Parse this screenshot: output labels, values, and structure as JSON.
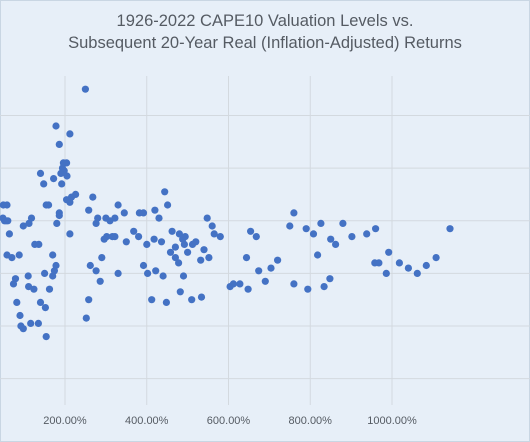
{
  "chart_data": {
    "type": "scatter",
    "title": [
      "1926-2022 CAPE10 Valuation Levels vs.",
      "Subsequent 20-Year Real (Inflation-Adjusted) Returns"
    ],
    "xlabel": "",
    "ylabel": "",
    "xlim": [
      15,
      1170
    ],
    "ylim": [
      -1,
      11.5
    ],
    "x_ticks": [
      200,
      400,
      600,
      800,
      1000
    ],
    "x_tick_labels": [
      "200.00%",
      "400.00%",
      "600.00%",
      "800.00%",
      "1000.00%"
    ],
    "y_grid": [
      0,
      2,
      4,
      6,
      8,
      10
    ],
    "grid": true,
    "legend": "none",
    "marker_color": "#4472c4",
    "x": [
      15,
      20,
      25,
      30,
      35,
      40,
      40,
      45,
      50,
      55,
      60,
      65,
      65,
      70,
      75,
      80,
      80,
      85,
      90,
      90,
      100,
      110,
      115,
      125,
      140,
      160,
      165,
      170,
      175,
      180,
      180,
      185,
      190,
      195,
      205,
      210,
      220,
      230,
      250,
      255,
      275,
      280,
      290,
      300,
      320,
      330,
      340,
      365,
      375,
      380,
      385,
      415,
      420,
      425,
      430,
      445,
      450,
      460,
      470,
      475,
      480,
      485,
      490,
      495,
      500,
      505,
      510,
      525,
      540,
      565,
      590,
      600,
      640,
      665,
      690,
      750,
      780,
      800,
      810,
      820,
      830,
      850,
      890,
      955,
      975,
      980,
      1045,
      1100
    ],
    "y": [
      3.0,
      2.0,
      6.5,
      5.0,
      3.0,
      1.7,
      8.5,
      8.9,
      3.9,
      6.1,
      8.4,
      6.3,
      6.8,
      6.6,
      5.5,
      8.6,
      5.2,
      8.6,
      6.8,
      6.5,
      8.7,
      4.8,
      5.6,
      8.8,
      3.0,
      1.3,
      3.4,
      7.4,
      9.2,
      7.4,
      6.8,
      8.1,
      3.5,
      9.3,
      8.6,
      7.4,
      9.7,
      9.2,
      4.0,
      6.7,
      6.4,
      6.5,
      3.3,
      7.6,
      5.6,
      5.2,
      8.4,
      3.7,
      2.5,
      4.2,
      5.4,
      4.0,
      1.3,
      3.7,
      5.8,
      7.0,
      5.2,
      6.3,
      7.5,
      6.5,
      5.6,
      5.5,
      6.2,
      4.6,
      4.0,
      5.3,
      5.6,
      6.3,
      6.5,
      3.8,
      4.5,
      4.6,
      6.1,
      6.5,
      7.0,
      5.1,
      6.1,
      5.5,
      4.5,
      5.4,
      4.9,
      4.6,
      5.4,
      5.6,
      4.9,
      5.3,
      4.6,
      5.6
    ],
    "points": [
      [
        5,
        5.0
      ],
      [
        5,
        3.4
      ],
      [
        12,
        3.0
      ],
      [
        12,
        2.0
      ],
      [
        12,
        6.4
      ],
      [
        18,
        6.4
      ],
      [
        28,
        6.4
      ],
      [
        34,
        6.0
      ],
      [
        36,
        6.1
      ],
      [
        44,
        6.6
      ],
      [
        49,
        6.6
      ],
      [
        60,
        6.0
      ],
      [
        88,
        4.7
      ],
      [
        110,
        3.9
      ],
      [
        111,
        3.5
      ],
      [
        135,
        2.1
      ],
      [
        150,
        4.0
      ],
      [
        160,
        6.6
      ],
      [
        170,
        4.7
      ],
      [
        180,
        5.9
      ],
      [
        186,
        6.3
      ],
      [
        192,
        7.4
      ],
      [
        198,
        7.9
      ],
      [
        204,
        8.2
      ],
      [
        212,
        6.7
      ],
      [
        216,
        6.9
      ],
      [
        258,
        6.4
      ],
      [
        276,
        5.9
      ],
      [
        290,
        4.6
      ],
      [
        302,
        5.4
      ],
      [
        316,
        5.4
      ],
      [
        330,
        4.0
      ],
      [
        345,
        6.3
      ],
      [
        368,
        5.6
      ],
      [
        382,
        6.3
      ],
      [
        392,
        6.3
      ],
      [
        420,
        6.4
      ],
      [
        430,
        6.1
      ],
      [
        444,
        7.1
      ],
      [
        451,
        6.6
      ],
      [
        462,
        5.6
      ],
      [
        470,
        5.0
      ],
      [
        492,
        5.1
      ],
      [
        500,
        4.8
      ],
      [
        512,
        5.1
      ],
      [
        532,
        4.5
      ],
      [
        548,
        6.1
      ],
      [
        560,
        5.8
      ],
      [
        580,
        5.4
      ],
      [
        604,
        3.5
      ],
      [
        628,
        3.6
      ],
      [
        644,
        4.6
      ],
      [
        668,
        5.4
      ],
      [
        690,
        3.7
      ],
      [
        720,
        4.5
      ],
      [
        760,
        6.3
      ],
      [
        790,
        5.7
      ],
      [
        818,
        4.7
      ],
      [
        826,
        5.9
      ],
      [
        850,
        5.3
      ],
      [
        862,
        5.1
      ],
      [
        880,
        5.9
      ],
      [
        902,
        5.4
      ],
      [
        938,
        5.5
      ],
      [
        968,
        4.4
      ],
      [
        992,
        4.8
      ],
      [
        1018,
        4.4
      ],
      [
        1040,
        4.2
      ],
      [
        1062,
        4.0
      ],
      [
        1084,
        4.3
      ],
      [
        1108,
        4.6
      ],
      [
        1142,
        5.7
      ]
    ],
    "series": [
      {
        "values": [
          [
            12,
            4.2
          ],
          [
            12,
            5.4
          ],
          [
            15,
            2.4
          ],
          [
            24,
            2.9
          ],
          [
            30,
            4.0
          ],
          [
            34,
            5.5
          ],
          [
            38,
            5.8
          ],
          [
            40,
            6.2
          ],
          [
            44,
            6.3
          ],
          [
            45,
            5.6
          ],
          [
            56,
            6.0
          ],
          [
            58,
            4.7
          ],
          [
            64,
            5.5
          ],
          [
            74,
            3.6
          ],
          [
            92,
            2.0
          ],
          [
            98,
            1.9
          ],
          [
            112,
            5.9
          ],
          [
            118,
            6.1
          ],
          [
            124,
            3.4
          ],
          [
            140,
            2.9
          ],
          [
            152,
            2.7
          ],
          [
            154,
            1.6
          ],
          [
            162,
            3.4
          ],
          [
            170,
            3.9
          ],
          [
            174,
            4.1
          ],
          [
            178,
            4.3
          ],
          [
            186,
            6.2
          ],
          [
            190,
            7.8
          ],
          [
            196,
            8.2
          ],
          [
            204,
            6.8
          ],
          [
            212,
            9.3
          ],
          [
            252,
            2.3
          ],
          [
            258,
            3.0
          ],
          [
            262,
            4.3
          ],
          [
            276,
            4.1
          ],
          [
            286,
            3.7
          ],
          [
            296,
            5.3
          ],
          [
            322,
            6.1
          ],
          [
            330,
            6.6
          ],
          [
            392,
            4.3
          ],
          [
            402,
            4.0
          ],
          [
            412,
            3.0
          ],
          [
            422,
            4.1
          ],
          [
            440,
            3.9
          ],
          [
            448,
            2.9
          ],
          [
            470,
            4.6
          ],
          [
            478,
            4.4
          ],
          [
            482,
            3.3
          ],
          [
            490,
            3.9
          ],
          [
            510,
            3.0
          ],
          [
            534,
            3.1
          ],
          [
            552,
            4.6
          ],
          [
            612,
            3.6
          ],
          [
            648,
            3.4
          ],
          [
            674,
            4.1
          ],
          [
            704,
            4.2
          ],
          [
            760,
            3.6
          ],
          [
            794,
            3.4
          ],
          [
            834,
            3.5
          ],
          [
            848,
            3.8
          ],
          [
            958,
            4.4
          ],
          [
            986,
            4.0
          ]
        ]
      }
    ],
    "plot_points": [
      [
        20,
        6.4
      ],
      [
        32,
        6.8
      ],
      [
        38,
        6.7
      ],
      [
        43,
        6.5
      ],
      [
        48,
        6.1
      ],
      [
        52,
        6.0
      ],
      [
        58,
        6.6
      ],
      [
        70,
        4.6
      ],
      [
        79,
        3.8
      ],
      [
        82,
        2.9
      ],
      [
        90,
        2.4
      ],
      [
        98,
        5.8
      ],
      [
        116,
        2.1
      ],
      [
        126,
        5.1
      ],
      [
        136,
        5.1
      ],
      [
        140,
        7.8
      ],
      [
        148,
        7.4
      ],
      [
        154,
        6.6
      ],
      [
        172,
        7.6
      ],
      [
        178,
        9.6
      ],
      [
        186,
        8.9
      ],
      [
        194,
        8.0
      ],
      [
        205,
        7.7
      ],
      [
        212,
        5.5
      ],
      [
        226,
        7.0
      ],
      [
        250,
        11.0
      ],
      [
        268,
        6.9
      ],
      [
        280,
        6.1
      ],
      [
        300,
        6.1
      ],
      [
        310,
        6.0
      ],
      [
        322,
        5.4
      ],
      [
        350,
        5.2
      ],
      [
        380,
        5.4
      ],
      [
        400,
        5.1
      ],
      [
        418,
        5.3
      ],
      [
        436,
        5.2
      ],
      [
        458,
        4.8
      ],
      [
        480,
        5.5
      ],
      [
        488,
        5.3
      ],
      [
        494,
        5.4
      ],
      [
        520,
        5.2
      ],
      [
        540,
        4.9
      ],
      [
        565,
        5.5
      ],
      [
        654,
        5.6
      ],
      [
        750,
        5.8
      ],
      [
        808,
        5.5
      ],
      [
        960,
        5.7
      ]
    ]
  }
}
